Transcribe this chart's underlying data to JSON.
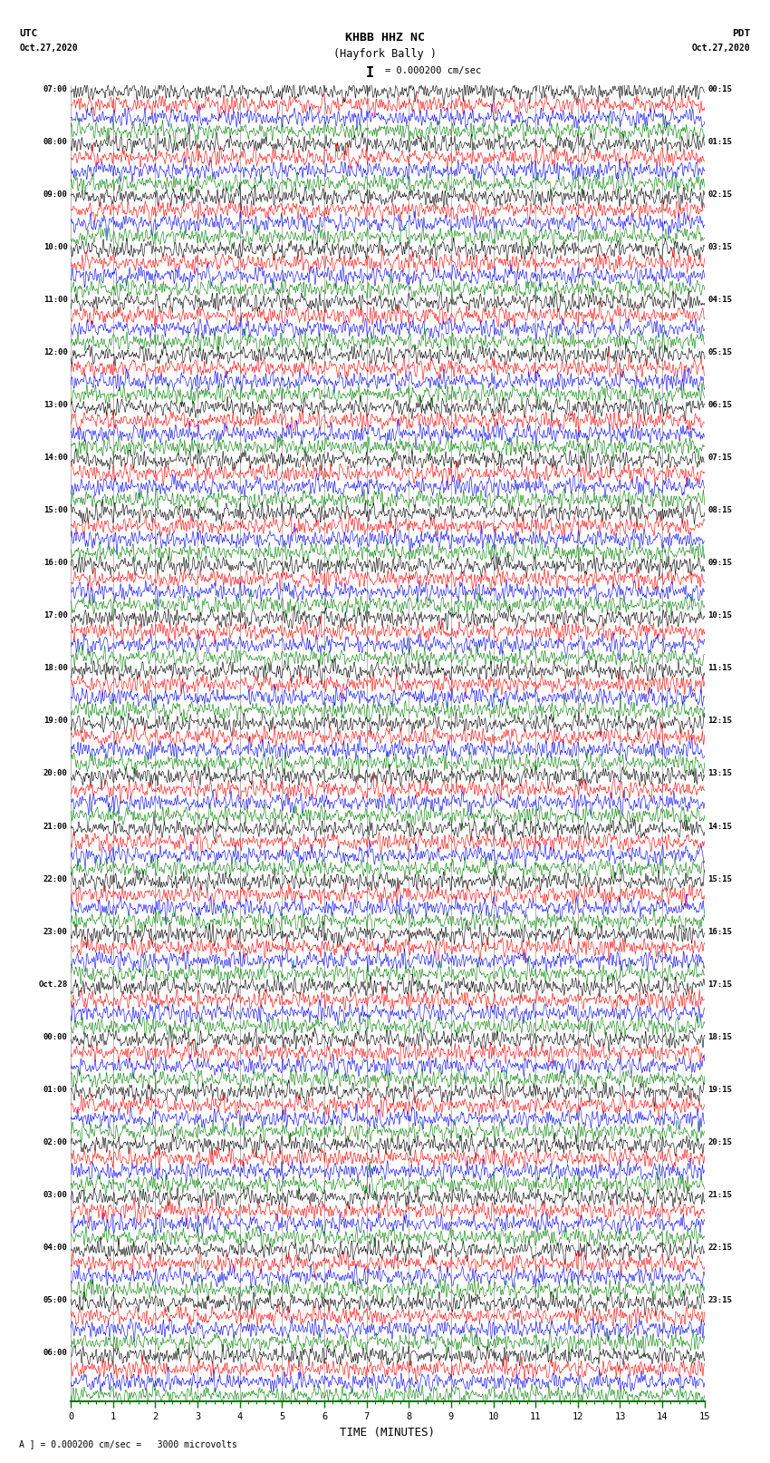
{
  "title_line1": "KHBB HHZ NC",
  "title_line2": "(Hayfork Bally )",
  "scale_text": "I = 0.000200 cm/sec",
  "left_label_line1": "UTC",
  "left_label_line2": "Oct.27,2020",
  "right_label_line1": "PDT",
  "right_label_line2": "Oct.27,2020",
  "bottom_label": "TIME (MINUTES)",
  "footer_text": "A ] = 0.000200 cm/sec =   3000 microvolts",
  "utc_times": [
    "07:00",
    "08:00",
    "09:00",
    "10:00",
    "11:00",
    "12:00",
    "13:00",
    "14:00",
    "15:00",
    "16:00",
    "17:00",
    "18:00",
    "19:00",
    "20:00",
    "21:00",
    "22:00",
    "23:00",
    "Oct.28",
    "00:00",
    "01:00",
    "02:00",
    "03:00",
    "04:00",
    "05:00",
    "06:00"
  ],
  "pdt_times": [
    "00:15",
    "01:15",
    "02:15",
    "03:15",
    "04:15",
    "05:15",
    "06:15",
    "07:15",
    "08:15",
    "09:15",
    "10:15",
    "11:15",
    "12:15",
    "13:15",
    "14:15",
    "15:15",
    "16:15",
    "17:15",
    "18:15",
    "19:15",
    "20:15",
    "21:15",
    "22:15",
    "23:15",
    ""
  ],
  "trace_colors": [
    "black",
    "red",
    "blue",
    "green"
  ],
  "n_rows": 25,
  "traces_per_row": 4,
  "minutes": 15,
  "bg_color": "white",
  "grid_color": "#888888",
  "xaxis_color": "#007700"
}
